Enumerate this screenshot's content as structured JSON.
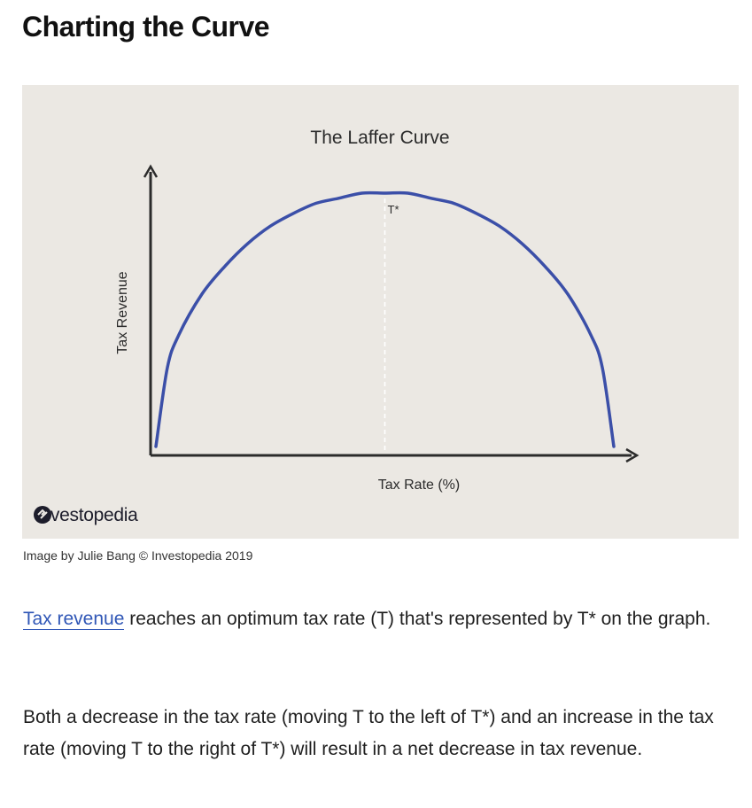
{
  "article": {
    "heading": "Charting the Curve",
    "caption": "Image by Julie Bang © Investopedia 2019",
    "paragraph1": {
      "link_text": "Tax revenue",
      "rest": " reaches an optimum tax rate (T) that's represented by T* on the graph."
    },
    "paragraph2": "Both a decrease in the tax rate (moving T to the left of T*) and an increase in the tax rate (moving T to the right of T*) will result in a net decrease in tax revenue."
  },
  "figure": {
    "brand": "Investopedia",
    "colors": {
      "background": "#ebe8e3",
      "curve": "#3b4fa8",
      "axis": "#2b2b2b"
    }
  },
  "chart_data": {
    "type": "line",
    "title": "The Laffer Curve",
    "xlabel": "Tax Rate (%)",
    "ylabel": "Tax Revenue",
    "grid": false,
    "legend": "none",
    "annotations": [
      {
        "label": "T*",
        "x": 50,
        "style": "dashed-vertical"
      }
    ],
    "xlim": [
      0,
      100
    ],
    "ylim": [
      0,
      100
    ],
    "series": [
      {
        "x": [
          0,
          2.5,
          5,
          10,
          15,
          20,
          25,
          30,
          35,
          40,
          45,
          50,
          55,
          60,
          65,
          70,
          75,
          80,
          85,
          90,
          95,
          97.5,
          100
        ],
        "y": [
          0,
          31,
          44,
          60,
          71,
          80,
          87,
          92,
          96,
          98,
          100,
          100,
          100,
          98,
          96,
          92,
          87,
          80,
          71,
          60,
          44,
          31,
          0
        ]
      }
    ]
  }
}
